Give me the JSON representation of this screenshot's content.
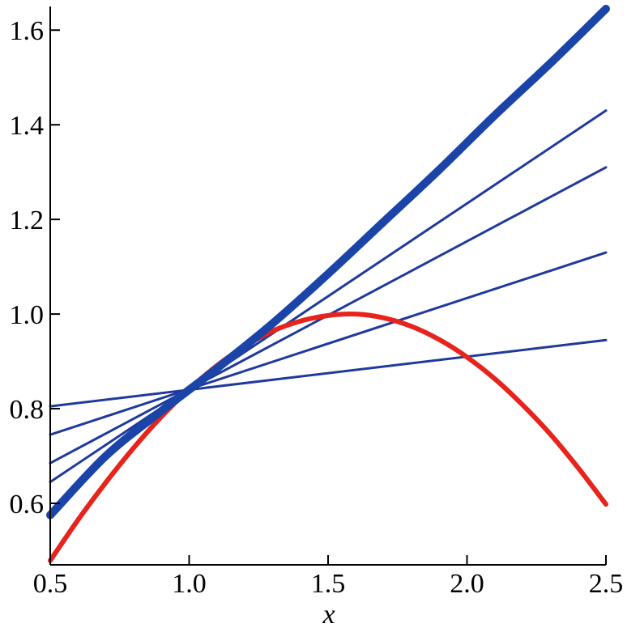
{
  "chart_data": {
    "type": "line",
    "title": "",
    "xlabel": "x",
    "ylabel": "",
    "xlim": [
      0.5,
      2.5
    ],
    "ylim": [
      0.47,
      1.65
    ],
    "grid": false,
    "legend": "none",
    "x_ticks": [
      "0.5",
      "1.0",
      "1.5",
      "2.0",
      "2.5"
    ],
    "y_ticks": [
      "0.6",
      "0.8",
      "1.0",
      "1.2",
      "1.4",
      "1.6"
    ],
    "x_tick_values": [
      0.5,
      1.0,
      1.5,
      2.0,
      2.5
    ],
    "y_tick_values": [
      0.6,
      0.8,
      1.0,
      1.2,
      1.4,
      1.6
    ],
    "colors": {
      "red": "#e8231c",
      "blue": "#1f3a9c",
      "blue_thick": "#1b44a8"
    },
    "series": [
      {
        "color": "red",
        "width": "thick",
        "x": [
          0.5,
          0.6,
          0.7,
          0.8,
          0.9,
          1.0,
          1.1,
          1.2,
          1.3,
          1.4,
          1.5,
          1.6,
          1.7,
          1.8,
          1.9,
          2.0,
          2.1,
          2.2,
          2.3,
          2.4,
          2.5
        ],
        "y": [
          0.479,
          0.565,
          0.644,
          0.717,
          0.783,
          0.841,
          0.891,
          0.932,
          0.964,
          0.985,
          0.997,
          1.0,
          0.992,
          0.974,
          0.946,
          0.909,
          0.863,
          0.808,
          0.746,
          0.675,
          0.598
        ]
      },
      {
        "color": "blue_thick",
        "width": "extra-thick",
        "x": [
          0.5,
          0.7,
          0.9,
          1.1,
          1.3,
          1.5,
          1.7,
          1.9,
          2.1,
          2.3,
          2.5
        ],
        "y": [
          0.575,
          0.7,
          0.795,
          0.885,
          0.98,
          1.085,
          1.195,
          1.305,
          1.42,
          1.53,
          1.645
        ]
      },
      {
        "color": "blue",
        "width": "thin",
        "x": [
          0.5,
          2.5
        ],
        "y": [
          0.645,
          1.43
        ]
      },
      {
        "color": "blue",
        "width": "thin",
        "x": [
          0.5,
          2.5
        ],
        "y": [
          0.685,
          1.31
        ]
      },
      {
        "color": "blue",
        "width": "thin",
        "x": [
          0.5,
          2.5
        ],
        "y": [
          0.745,
          1.13
        ]
      },
      {
        "color": "blue",
        "width": "thin",
        "x": [
          0.5,
          2.5
        ],
        "y": [
          0.805,
          0.945
        ]
      }
    ]
  }
}
